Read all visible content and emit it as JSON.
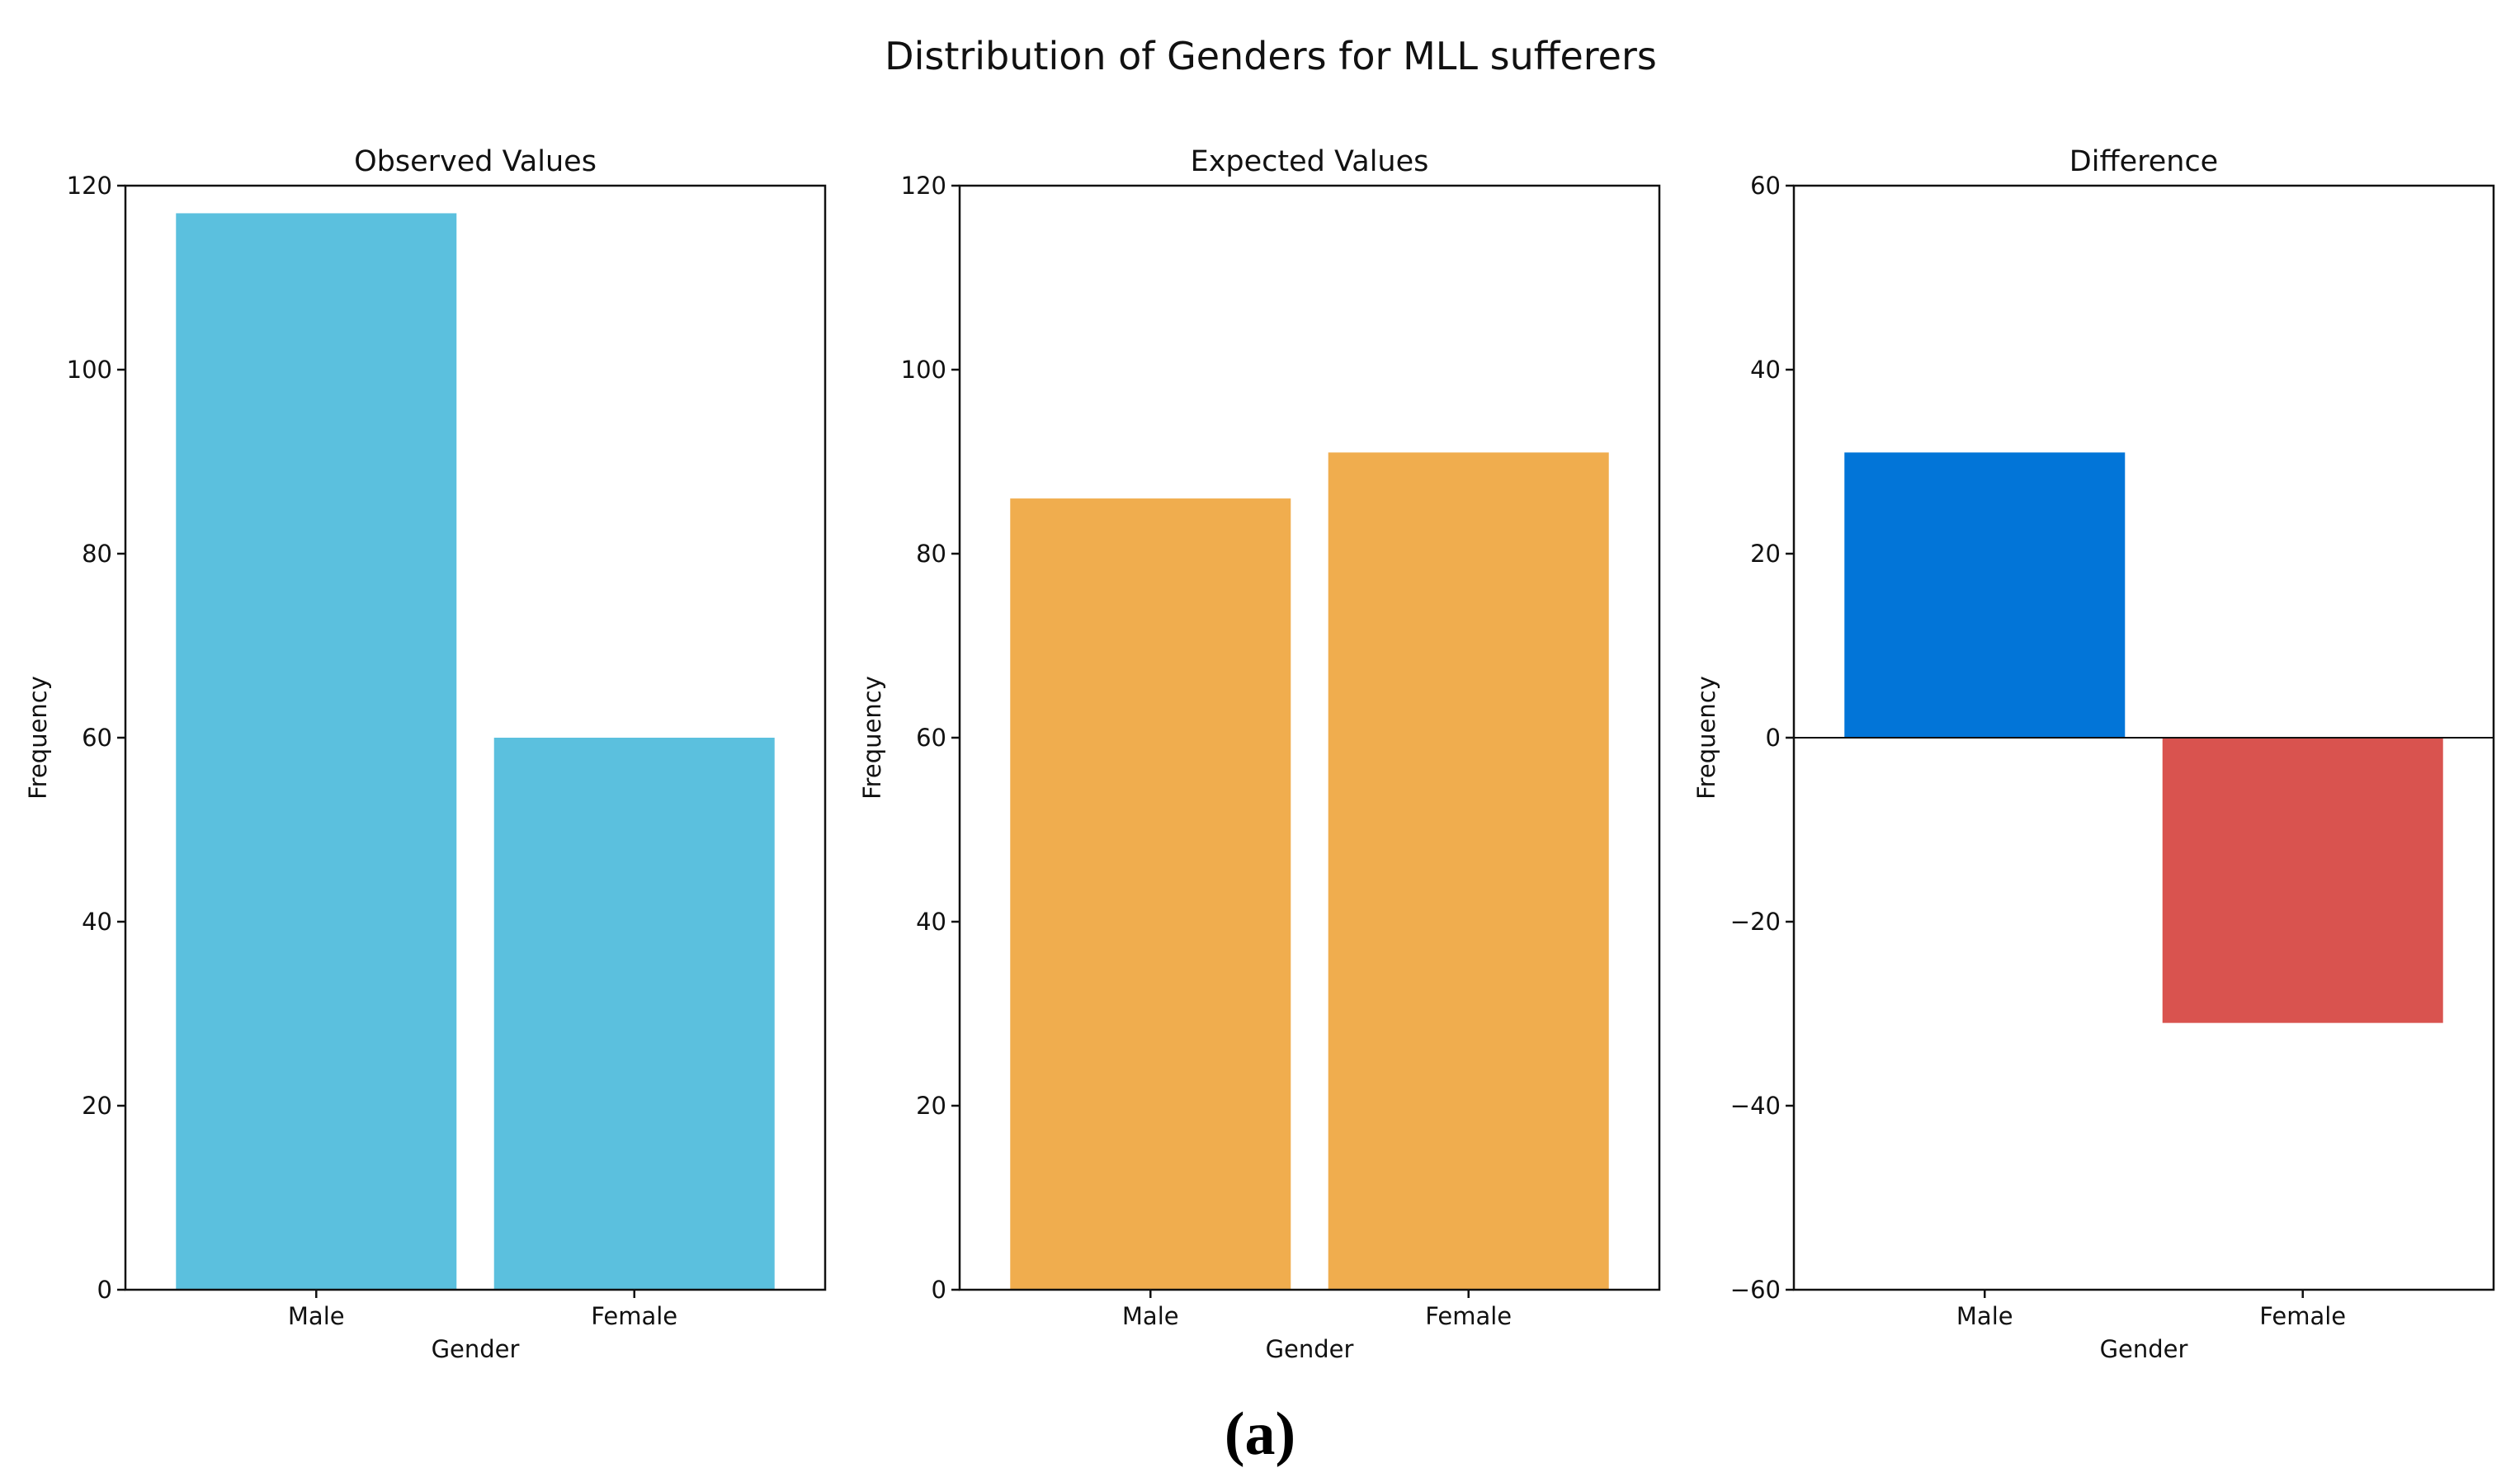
{
  "figure": {
    "title": "Distribution of Genders for MLL sufferers",
    "panel_letter": "(a)"
  },
  "chart_data": [
    {
      "type": "bar",
      "title": "Observed Values",
      "xlabel": "Gender",
      "ylabel": "Frequency",
      "categories": [
        "Male",
        "Female"
      ],
      "values": [
        117,
        60
      ],
      "colors": [
        "#5bc0de",
        "#5bc0de"
      ],
      "ylim": [
        0,
        120
      ],
      "yticks": [
        0,
        20,
        40,
        60,
        80,
        100,
        120
      ],
      "ytick_labels": [
        "0",
        "20",
        "40",
        "60",
        "80",
        "100",
        "120"
      ],
      "grid": false
    },
    {
      "type": "bar",
      "title": "Expected Values",
      "xlabel": "Gender",
      "ylabel": "Frequency",
      "categories": [
        "Male",
        "Female"
      ],
      "values": [
        86,
        91
      ],
      "colors": [
        "#f0ad4e",
        "#f0ad4e"
      ],
      "ylim": [
        0,
        120
      ],
      "yticks": [
        0,
        20,
        40,
        60,
        80,
        100,
        120
      ],
      "ytick_labels": [
        "0",
        "20",
        "40",
        "60",
        "80",
        "100",
        "120"
      ],
      "grid": false
    },
    {
      "type": "bar",
      "title": "Difference",
      "xlabel": "Gender",
      "ylabel": "Frequency",
      "categories": [
        "Male",
        "Female"
      ],
      "values": [
        31,
        -31
      ],
      "colors": [
        "#0275d8",
        "#d9534f"
      ],
      "ylim": [
        -60,
        60
      ],
      "yticks": [
        -60,
        -40,
        -20,
        0,
        20,
        40,
        60
      ],
      "ytick_labels": [
        "−60",
        "−40",
        "−20",
        "0",
        "20",
        "40",
        "60"
      ],
      "zero_line": true,
      "grid": false
    }
  ]
}
